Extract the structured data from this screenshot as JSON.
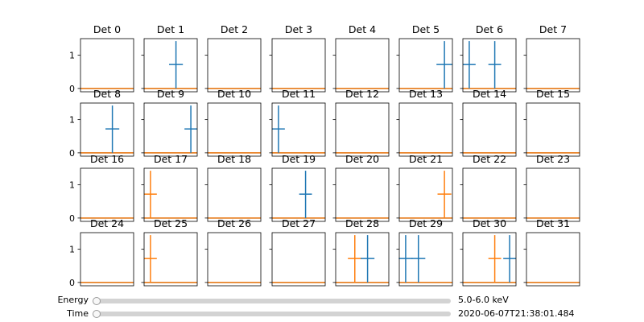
{
  "colors": {
    "series_blue": "#1f77b4",
    "series_orange": "#ff7f0e"
  },
  "chart_data": {
    "type": "grid-of-small-plots",
    "ylim": [
      -0.1,
      1.5
    ],
    "yticks": [
      "0",
      "1"
    ],
    "series": [
      {
        "name": "",
        "color": "#1f77b4"
      },
      {
        "name": "",
        "color": "#ff7f0e"
      }
    ],
    "panels": [
      {
        "title": "Det 0",
        "marks": []
      },
      {
        "title": "Det 1",
        "marks": [
          {
            "series": 0,
            "x": 0.6,
            "y": 0.72,
            "xerr": 0.13
          }
        ]
      },
      {
        "title": "Det 2",
        "marks": []
      },
      {
        "title": "Det 3",
        "marks": []
      },
      {
        "title": "Det 4",
        "marks": []
      },
      {
        "title": "Det 5",
        "marks": [
          {
            "series": 0,
            "x": 0.85,
            "y": 0.72,
            "xerr": 0.15
          }
        ]
      },
      {
        "title": "Det 6",
        "marks": [
          {
            "series": 0,
            "x": 0.12,
            "y": 0.72,
            "xerr": 0.12
          },
          {
            "series": 0,
            "x": 0.6,
            "y": 0.72,
            "xerr": 0.12
          }
        ]
      },
      {
        "title": "Det 7",
        "marks": []
      },
      {
        "title": "Det 8",
        "marks": [
          {
            "series": 0,
            "x": 0.6,
            "y": 0.72,
            "xerr": 0.13
          }
        ]
      },
      {
        "title": "Det 9",
        "marks": [
          {
            "series": 0,
            "x": 0.88,
            "y": 0.72,
            "xerr": 0.12
          }
        ]
      },
      {
        "title": "Det 10",
        "marks": []
      },
      {
        "title": "Det 11",
        "marks": [
          {
            "series": 0,
            "x": 0.12,
            "y": 0.72,
            "xerr": 0.12
          }
        ]
      },
      {
        "title": "Det 12",
        "marks": []
      },
      {
        "title": "Det 13",
        "marks": []
      },
      {
        "title": "Det 14",
        "marks": []
      },
      {
        "title": "Det 15",
        "marks": []
      },
      {
        "title": "Det 16",
        "marks": []
      },
      {
        "title": "Det 17",
        "marks": [
          {
            "series": 1,
            "x": 0.12,
            "y": 0.72,
            "xerr": 0.12
          }
        ]
      },
      {
        "title": "Det 18",
        "marks": []
      },
      {
        "title": "Det 19",
        "marks": [
          {
            "series": 0,
            "x": 0.63,
            "y": 0.72,
            "xerr": 0.12
          }
        ]
      },
      {
        "title": "Det 20",
        "marks": []
      },
      {
        "title": "Det 21",
        "marks": [
          {
            "series": 1,
            "x": 0.85,
            "y": 0.72,
            "xerr": 0.13
          }
        ]
      },
      {
        "title": "Det 22",
        "marks": []
      },
      {
        "title": "Det 23",
        "marks": []
      },
      {
        "title": "Det 24",
        "marks": []
      },
      {
        "title": "Det 25",
        "marks": [
          {
            "series": 1,
            "x": 0.12,
            "y": 0.72,
            "xerr": 0.12
          }
        ]
      },
      {
        "title": "Det 26",
        "marks": []
      },
      {
        "title": "Det 27",
        "marks": []
      },
      {
        "title": "Det 28",
        "marks": [
          {
            "series": 1,
            "x": 0.36,
            "y": 0.72,
            "xerr": 0.13
          },
          {
            "series": 0,
            "x": 0.6,
            "y": 0.72,
            "xerr": 0.13
          }
        ]
      },
      {
        "title": "Det 29",
        "marks": [
          {
            "series": 0,
            "x": 0.12,
            "y": 0.72,
            "xerr": 0.13
          },
          {
            "series": 0,
            "x": 0.36,
            "y": 0.72,
            "xerr": 0.13
          }
        ]
      },
      {
        "title": "Det 30",
        "marks": [
          {
            "series": 1,
            "x": 0.6,
            "y": 0.72,
            "xerr": 0.12
          },
          {
            "series": 0,
            "x": 0.88,
            "y": 0.72,
            "xerr": 0.12
          }
        ]
      },
      {
        "title": "Det 31",
        "marks": []
      }
    ]
  },
  "sliders": [
    {
      "label": "Energy",
      "value_text": "5.0-6.0 keV",
      "position": 0
    },
    {
      "label": "Time",
      "value_text": "2020-06-07T21:38:01.484",
      "position": 0
    }
  ]
}
